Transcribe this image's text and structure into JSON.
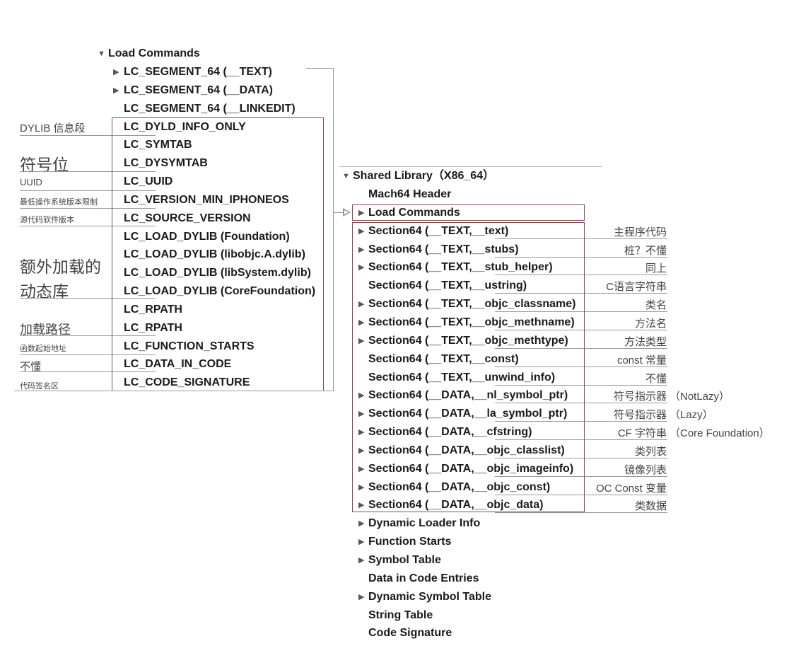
{
  "left_tree": {
    "root": {
      "label": "Load Commands",
      "expanded": true
    },
    "items": [
      {
        "label": "LC_SEGMENT_64 (__TEXT)",
        "expandable": true
      },
      {
        "label": "LC_SEGMENT_64 (__DATA)",
        "expandable": true
      },
      {
        "label": "LC_SEGMENT_64 (__LINKEDIT)",
        "expandable": false
      },
      {
        "label": "LC_DYLD_INFO_ONLY",
        "expandable": false
      },
      {
        "label": "LC_SYMTAB",
        "expandable": false
      },
      {
        "label": "LC_DYSYMTAB",
        "expandable": false
      },
      {
        "label": "LC_UUID",
        "expandable": false
      },
      {
        "label": "LC_VERSION_MIN_IPHONEOS",
        "expandable": false
      },
      {
        "label": "LC_SOURCE_VERSION",
        "expandable": false
      },
      {
        "label": "LC_LOAD_DYLIB (Foundation)",
        "expandable": false
      },
      {
        "label": "LC_LOAD_DYLIB (libobjc.A.dylib)",
        "expandable": false
      },
      {
        "label": "LC_LOAD_DYLIB (libSystem.dylib)",
        "expandable": false
      },
      {
        "label": "LC_LOAD_DYLIB (CoreFoundation)",
        "expandable": false
      },
      {
        "label": "LC_RPATH",
        "expandable": false
      },
      {
        "label": "LC_RPATH",
        "expandable": false
      },
      {
        "label": "LC_FUNCTION_STARTS",
        "expandable": false
      },
      {
        "label": "LC_DATA_IN_CODE",
        "expandable": false
      },
      {
        "label": "LC_CODE_SIGNATURE",
        "expandable": false
      }
    ],
    "annotations": [
      {
        "text": "DYLIB 信息段",
        "size": "medium"
      },
      {
        "text": "符号位",
        "size": "large"
      },
      {
        "text": "UUID",
        "size": "small"
      },
      {
        "text": "最低操作系统版本限制",
        "size": "tiny"
      },
      {
        "text": "源代码软件版本",
        "size": "tiny"
      },
      {
        "text": "额外加载的",
        "size": "large"
      },
      {
        "text": "动态库",
        "size": "large"
      },
      {
        "text": "加载路径",
        "size": "medium"
      },
      {
        "text": "函数起始地址",
        "size": "tiny"
      },
      {
        "text": "不懂",
        "size": "medium"
      },
      {
        "text": "代码签名区",
        "size": "tiny"
      }
    ]
  },
  "right_tree": {
    "root": {
      "label": "Shared Library（X86_64）",
      "expanded": true
    },
    "items": [
      {
        "label": "Mach64 Header",
        "expandable": false,
        "note": ""
      },
      {
        "label": "Load Commands",
        "expandable": true,
        "note": ""
      },
      {
        "label": "Section64 (__TEXT,__text)",
        "expandable": true,
        "note": "主程序代码",
        "extra": ""
      },
      {
        "label": "Section64 (__TEXT,__stubs)",
        "expandable": true,
        "note": "桩？不懂",
        "extra": ""
      },
      {
        "label": "Section64 (__TEXT,__stub_helper)",
        "expandable": true,
        "note": "同上",
        "extra": ""
      },
      {
        "label": "Section64 (__TEXT,__ustring)",
        "expandable": false,
        "note": "C语言字符串",
        "extra": ""
      },
      {
        "label": "Section64 (__TEXT,__objc_classname)",
        "expandable": true,
        "note": "类名",
        "extra": ""
      },
      {
        "label": "Section64 (__TEXT,__objc_methname)",
        "expandable": true,
        "note": "方法名",
        "extra": ""
      },
      {
        "label": "Section64 (__TEXT,__objc_methtype)",
        "expandable": true,
        "note": "方法类型",
        "extra": ""
      },
      {
        "label": "Section64 (__TEXT,__const)",
        "expandable": false,
        "note": "const 常量",
        "extra": ""
      },
      {
        "label": "Section64 (__TEXT,__unwind_info)",
        "expandable": false,
        "note": "不懂",
        "extra": ""
      },
      {
        "label": "Section64 (__DATA,__nl_symbol_ptr)",
        "expandable": true,
        "note": "符号指示器",
        "extra": "（NotLazy）"
      },
      {
        "label": "Section64 (__DATA,__la_symbol_ptr)",
        "expandable": true,
        "note": "符号指示器",
        "extra": "（Lazy）"
      },
      {
        "label": "Section64 (__DATA,__cfstring)",
        "expandable": true,
        "note": "CF  字符串",
        "extra": "（Core Foundation）"
      },
      {
        "label": "Section64 (__DATA,__objc_classlist)",
        "expandable": true,
        "note": "类列表",
        "extra": ""
      },
      {
        "label": "Section64 (__DATA,__objc_imageinfo)",
        "expandable": true,
        "note": "镜像列表",
        "extra": ""
      },
      {
        "label": "Section64 (__DATA,__objc_const)",
        "expandable": true,
        "note": "OC Const 变量",
        "extra": ""
      },
      {
        "label": "Section64 (__DATA,__objc_data)",
        "expandable": true,
        "note": "类数据",
        "extra": ""
      },
      {
        "label": "Dynamic Loader Info",
        "expandable": true,
        "note": ""
      },
      {
        "label": "Function Starts",
        "expandable": true,
        "note": ""
      },
      {
        "label": "Symbol Table",
        "expandable": true,
        "note": ""
      },
      {
        "label": "Data in Code Entries",
        "expandable": false,
        "note": ""
      },
      {
        "label": "Dynamic Symbol Table",
        "expandable": true,
        "note": ""
      },
      {
        "label": "String Table",
        "expandable": false,
        "note": ""
      },
      {
        "label": "Code Signature",
        "expandable": false,
        "note": ""
      }
    ]
  },
  "colors": {
    "highlight_box": "#8a4a4e",
    "connector": "#999999",
    "text": "#1a1a1a"
  }
}
